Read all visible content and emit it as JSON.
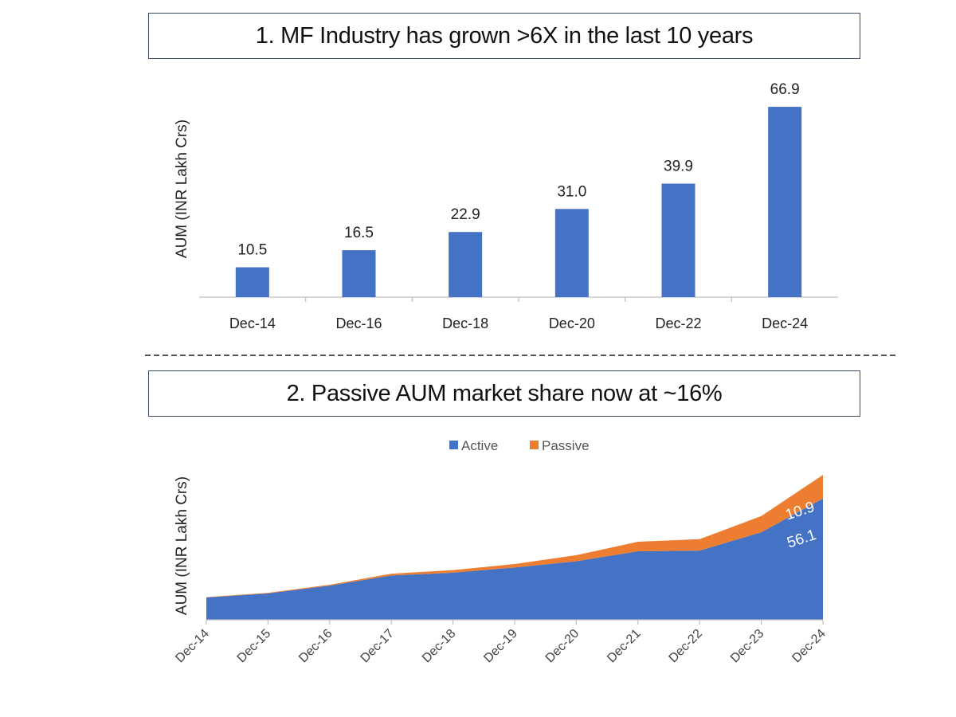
{
  "chart_data": [
    {
      "type": "bar",
      "title": "1. MF Industry has grown >6X in the last 10 years",
      "xlabel": "",
      "ylabel": "AUM (INR Lakh Crs)",
      "categories": [
        "Dec-14",
        "Dec-16",
        "Dec-18",
        "Dec-20",
        "Dec-22",
        "Dec-24"
      ],
      "values": [
        10.5,
        16.5,
        22.9,
        31.0,
        39.9,
        66.9
      ],
      "value_labels": [
        "10.5",
        "16.5",
        "22.9",
        "31.0",
        "39.9",
        "66.9"
      ],
      "ylim": [
        0,
        70
      ],
      "grid": false,
      "colors": {
        "bar": "#4472c4"
      }
    },
    {
      "type": "area",
      "stacked": true,
      "title": "2. Passive AUM market share now at ~16%",
      "xlabel": "",
      "ylabel": "AUM (INR Lakh Crs)",
      "x": [
        "Dec-14",
        "Dec-15",
        "Dec-16",
        "Dec-17",
        "Dec-18",
        "Dec-19",
        "Dec-20",
        "Dec-21",
        "Dec-22",
        "Dec-23",
        "Dec-24"
      ],
      "series": [
        {
          "name": "Active",
          "values": [
            10.3,
            12.2,
            15.8,
            20.5,
            21.8,
            24.2,
            27.1,
            31.7,
            32.0,
            40.5,
            56.1
          ],
          "color": "#4472c4"
        },
        {
          "name": "Passive",
          "values": [
            0.2,
            0.3,
            0.4,
            0.8,
            1.2,
            1.6,
            2.8,
            4.4,
            5.3,
            7.5,
            10.9
          ],
          "color": "#ed7d31"
        }
      ],
      "annotations": [
        "10.9",
        "56.1"
      ],
      "ylim": [
        0,
        70
      ],
      "grid": false,
      "legend_position": "top"
    }
  ]
}
